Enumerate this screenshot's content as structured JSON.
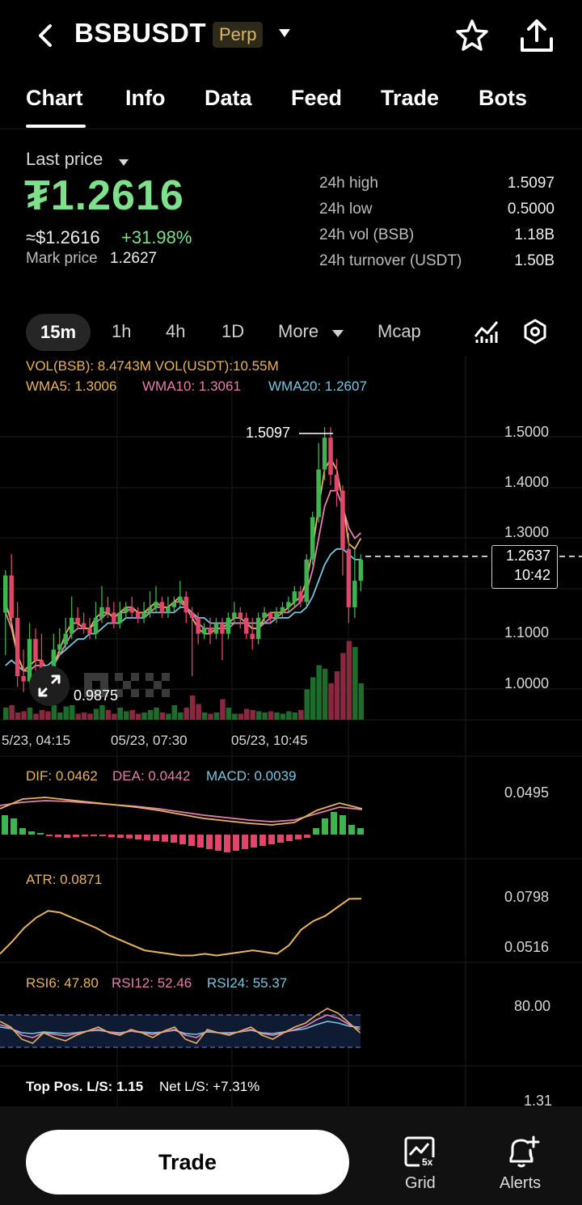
{
  "header": {
    "symbol": "BSBUSDT",
    "badge": "Perp",
    "icons": [
      "back-arrow-icon",
      "chevron-down-icon",
      "star-icon",
      "share-icon"
    ]
  },
  "tabs": [
    {
      "label": "Chart",
      "active": true
    },
    {
      "label": "Info"
    },
    {
      "label": "Data"
    },
    {
      "label": "Feed"
    },
    {
      "label": "Trade"
    },
    {
      "label": "Bots"
    }
  ],
  "price": {
    "label": "Last price",
    "value": "₮1.2616",
    "usd": "≈$1.2616",
    "change": "+31.98%",
    "mark_label": "Mark price",
    "mark_value": "1.2627"
  },
  "stats": [
    {
      "label": "24h high",
      "value": "1.5097"
    },
    {
      "label": "24h low",
      "value": "0.5000"
    },
    {
      "label": "24h vol (BSB)",
      "value": "1.18B"
    },
    {
      "label": "24h turnover (USDT)",
      "value": "1.50B"
    }
  ],
  "timeframes": {
    "items": [
      "15m",
      "1h",
      "4h",
      "1D",
      "More",
      "Mcap"
    ],
    "active": "15m"
  },
  "main_chart": {
    "vol_legend": "VOL(BSB): 8.4743M VOL(USDT):10.55M",
    "wma5": "WMA5: 1.3006",
    "wma10": "WMA10: 1.3061",
    "wma20": "WMA20: 1.2607",
    "y_ticks": [
      "1.5000",
      "1.4000",
      "1.3000",
      "1.1000",
      "1.0000"
    ],
    "high_label": "1.5097",
    "low_label": "0.9875",
    "current_price": "1.2637",
    "countdown": "10:42",
    "dates": [
      "5/23, 04:15",
      "05/23, 07:30",
      "05/23, 10:45"
    ]
  },
  "macd": {
    "dif": "DIF: 0.0462",
    "dea": "DEA: 0.0442",
    "macd": "MACD: 0.0039",
    "tick": "0.0495"
  },
  "atr": {
    "label": "ATR: 0.0871",
    "ticks": [
      "0.0798",
      "0.0516"
    ]
  },
  "rsi": {
    "rsi6": "RSI6: 47.80",
    "rsi12": "RSI12: 52.46",
    "rsi24": "RSI24: 55.37",
    "tick": "80.00"
  },
  "ls": {
    "top": "Top Pos. L/S: 1.15",
    "net": "Net L/S: +7.31%",
    "tick": "1.31"
  },
  "bottom": {
    "trade": "Trade",
    "grid": "Grid",
    "grid_badge": "5x",
    "alerts": "Alerts"
  },
  "chart_data": {
    "type": "candlestick",
    "interval": "15m",
    "ylim": [
      0.95,
      1.53
    ],
    "candles": [
      [
        1.16,
        1.23,
        1.08,
        1.24
      ],
      [
        1.23,
        1.15,
        1.14,
        1.27
      ],
      [
        1.15,
        1.04,
        1.02,
        1.18
      ],
      [
        1.04,
        1.03,
        1.01,
        1.09
      ],
      [
        1.03,
        1.11,
        1.02,
        1.14
      ],
      [
        1.11,
        1.07,
        1.05,
        1.13
      ],
      [
        1.07,
        1.05,
        0.99,
        1.12
      ],
      [
        1.05,
        1.01,
        0.99,
        1.06
      ],
      [
        1.01,
        1.09,
        1.0,
        1.12
      ],
      [
        1.09,
        1.1,
        1.08,
        1.13
      ],
      [
        1.1,
        1.12,
        1.09,
        1.15
      ],
      [
        1.12,
        1.15,
        1.11,
        1.19
      ],
      [
        1.15,
        1.14,
        1.13,
        1.17
      ],
      [
        1.14,
        1.13,
        1.12,
        1.16
      ],
      [
        1.13,
        1.12,
        1.11,
        1.15
      ],
      [
        1.12,
        1.15,
        1.11,
        1.18
      ],
      [
        1.15,
        1.17,
        1.14,
        1.21
      ],
      [
        1.17,
        1.16,
        1.15,
        1.19
      ],
      [
        1.16,
        1.14,
        1.13,
        1.18
      ],
      [
        1.14,
        1.16,
        1.13,
        1.18
      ],
      [
        1.16,
        1.17,
        1.15,
        1.18
      ],
      [
        1.17,
        1.16,
        1.15,
        1.19
      ],
      [
        1.16,
        1.15,
        1.14,
        1.17
      ],
      [
        1.15,
        1.16,
        1.14,
        1.18
      ],
      [
        1.16,
        1.17,
        1.15,
        1.2
      ],
      [
        1.17,
        1.18,
        1.16,
        1.21
      ],
      [
        1.18,
        1.16,
        1.15,
        1.19
      ],
      [
        1.16,
        1.17,
        1.15,
        1.19
      ],
      [
        1.17,
        1.18,
        1.16,
        1.19
      ],
      [
        1.18,
        1.19,
        1.17,
        1.22
      ],
      [
        1.19,
        1.16,
        1.14,
        1.2
      ],
      [
        1.16,
        1.15,
        1.04,
        1.17
      ],
      [
        1.15,
        1.12,
        1.1,
        1.16
      ],
      [
        1.12,
        1.13,
        1.11,
        1.14
      ],
      [
        1.13,
        1.12,
        1.1,
        1.15
      ],
      [
        1.12,
        1.14,
        1.11,
        1.15
      ],
      [
        1.14,
        1.12,
        1.07,
        1.15
      ],
      [
        1.12,
        1.15,
        1.11,
        1.16
      ],
      [
        1.15,
        1.16,
        1.14,
        1.18
      ],
      [
        1.16,
        1.15,
        1.13,
        1.17
      ],
      [
        1.15,
        1.12,
        1.11,
        1.16
      ],
      [
        1.12,
        1.11,
        1.09,
        1.15
      ],
      [
        1.11,
        1.15,
        1.1,
        1.16
      ],
      [
        1.15,
        1.16,
        1.14,
        1.17
      ],
      [
        1.16,
        1.15,
        1.14,
        1.16
      ],
      [
        1.15,
        1.16,
        1.14,
        1.17
      ],
      [
        1.16,
        1.17,
        1.15,
        1.18
      ],
      [
        1.17,
        1.18,
        1.16,
        1.19
      ],
      [
        1.18,
        1.2,
        1.17,
        1.21
      ],
      [
        1.2,
        1.18,
        1.17,
        1.21
      ],
      [
        1.18,
        1.26,
        1.17,
        1.27
      ],
      [
        1.26,
        1.34,
        1.25,
        1.35
      ],
      [
        1.34,
        1.43,
        1.33,
        1.48
      ],
      [
        1.43,
        1.49,
        1.41,
        1.51
      ],
      [
        1.49,
        1.42,
        1.4,
        1.51
      ],
      [
        1.42,
        1.39,
        1.36,
        1.45
      ],
      [
        1.39,
        1.28,
        1.23,
        1.4
      ],
      [
        1.28,
        1.17,
        1.14,
        1.31
      ],
      [
        1.17,
        1.22,
        1.15,
        1.28
      ],
      [
        1.22,
        1.26,
        1.2,
        1.27
      ]
    ],
    "volume": [
      0.1,
      0.12,
      0.06,
      0.07,
      0.1,
      0.05,
      0.08,
      0.07,
      0.12,
      0.06,
      0.11,
      0.12,
      0.05,
      0.06,
      0.05,
      0.09,
      0.12,
      0.08,
      0.05,
      0.1,
      0.07,
      0.08,
      0.05,
      0.06,
      0.08,
      0.1,
      0.06,
      0.05,
      0.12,
      0.06,
      0.1,
      0.2,
      0.13,
      0.06,
      0.05,
      0.06,
      0.17,
      0.1,
      0.05,
      0.05,
      0.09,
      0.08,
      0.07,
      0.06,
      0.07,
      0.06,
      0.05,
      0.07,
      0.06,
      0.08,
      0.25,
      0.35,
      0.45,
      0.42,
      0.3,
      0.4,
      0.55,
      0.65,
      0.6,
      0.3
    ],
    "wma5": [
      1.18,
      1.14,
      1.08,
      1.05,
      1.06,
      1.07,
      1.07,
      1.05,
      1.06,
      1.09,
      1.12,
      1.14,
      1.14,
      1.13,
      1.13,
      1.15,
      1.16,
      1.16,
      1.15,
      1.16,
      1.17,
      1.17,
      1.16,
      1.16,
      1.17,
      1.18,
      1.17,
      1.17,
      1.18,
      1.19,
      1.17,
      1.15,
      1.13,
      1.12,
      1.12,
      1.13,
      1.13,
      1.14,
      1.15,
      1.15,
      1.14,
      1.13,
      1.13,
      1.15,
      1.16,
      1.16,
      1.16,
      1.17,
      1.18,
      1.19,
      1.22,
      1.28,
      1.36,
      1.43,
      1.45,
      1.43,
      1.37,
      1.29,
      1.28,
      1.3
    ],
    "wma10": [
      1.16,
      1.13,
      1.08,
      1.05,
      1.05,
      1.06,
      1.06,
      1.05,
      1.06,
      1.08,
      1.1,
      1.12,
      1.13,
      1.13,
      1.13,
      1.14,
      1.15,
      1.16,
      1.15,
      1.16,
      1.16,
      1.17,
      1.16,
      1.16,
      1.16,
      1.17,
      1.17,
      1.17,
      1.18,
      1.18,
      1.17,
      1.16,
      1.14,
      1.13,
      1.13,
      1.13,
      1.13,
      1.13,
      1.14,
      1.14,
      1.14,
      1.13,
      1.13,
      1.14,
      1.15,
      1.15,
      1.16,
      1.16,
      1.17,
      1.18,
      1.2,
      1.24,
      1.3,
      1.36,
      1.39,
      1.39,
      1.36,
      1.32,
      1.3,
      1.31
    ],
    "wma20": [
      1.06,
      1.07,
      1.06,
      1.05,
      1.05,
      1.06,
      1.06,
      1.06,
      1.07,
      1.08,
      1.09,
      1.1,
      1.11,
      1.11,
      1.12,
      1.12,
      1.13,
      1.14,
      1.14,
      1.14,
      1.15,
      1.15,
      1.15,
      1.15,
      1.16,
      1.16,
      1.16,
      1.16,
      1.16,
      1.17,
      1.17,
      1.16,
      1.15,
      1.15,
      1.14,
      1.14,
      1.14,
      1.14,
      1.14,
      1.14,
      1.14,
      1.14,
      1.14,
      1.14,
      1.14,
      1.15,
      1.15,
      1.15,
      1.16,
      1.16,
      1.17,
      1.19,
      1.22,
      1.25,
      1.27,
      1.28,
      1.28,
      1.27,
      1.26,
      1.26
    ],
    "macd_hist": [
      0.6,
      0.5,
      0.2,
      0.1,
      0.05,
      -0.05,
      -0.08,
      -0.1,
      -0.08,
      -0.06,
      -0.05,
      -0.05,
      -0.08,
      -0.1,
      -0.12,
      -0.15,
      -0.18,
      -0.2,
      -0.22,
      -0.25,
      -0.3,
      -0.35,
      -0.4,
      -0.45,
      -0.5,
      -0.55,
      -0.5,
      -0.45,
      -0.4,
      -0.35,
      -0.3,
      -0.25,
      -0.2,
      -0.15,
      -0.1,
      0.2,
      0.5,
      0.7,
      0.6,
      0.3,
      0.2
    ],
    "atr": [
      0.055,
      0.062,
      0.07,
      0.076,
      0.08,
      0.079,
      0.076,
      0.073,
      0.07,
      0.066,
      0.063,
      0.06,
      0.057,
      0.056,
      0.055,
      0.054,
      0.054,
      0.055,
      0.054,
      0.055,
      0.056,
      0.057,
      0.056,
      0.055,
      0.06,
      0.069,
      0.074,
      0.077,
      0.082,
      0.087,
      0.0871
    ],
    "rsi6": [
      62,
      55,
      40,
      35,
      48,
      42,
      38,
      45,
      50,
      55,
      48,
      45,
      52,
      48,
      42,
      50,
      55,
      40,
      35,
      52,
      48,
      45,
      50,
      55,
      45,
      40,
      48,
      55,
      60,
      70,
      78,
      72,
      60,
      48
    ],
    "rsi12": [
      58,
      54,
      45,
      42,
      48,
      46,
      44,
      47,
      50,
      52,
      49,
      47,
      50,
      48,
      46,
      49,
      52,
      45,
      42,
      50,
      48,
      47,
      49,
      52,
      47,
      45,
      48,
      52,
      56,
      64,
      70,
      66,
      58,
      52
    ],
    "rsi24": [
      55,
      53,
      48,
      47,
      49,
      48,
      47,
      48,
      50,
      51,
      49,
      48,
      50,
      49,
      48,
      49,
      51,
      47,
      46,
      49,
      48,
      48,
      49,
      51,
      48,
      47,
      49,
      51,
      53,
      58,
      62,
      60,
      56,
      55
    ]
  }
}
